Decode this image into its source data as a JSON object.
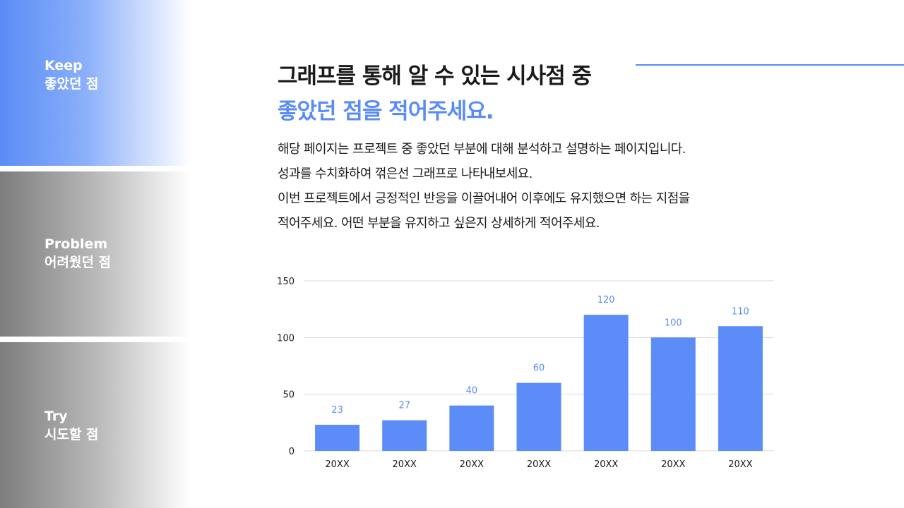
{
  "sidebar": {
    "keep": {
      "en": "Keep",
      "ko": "좋았던 점"
    },
    "problem": {
      "en": "Problem",
      "ko": "어려웠던 점"
    },
    "try": {
      "en": "Try",
      "ko": "시도할 점"
    }
  },
  "heading": {
    "line1": "그래프를 통해 알 수 있는 시사점 중",
    "line2": "좋았던 점을 적어주세요."
  },
  "description": [
    "해당 페이지는 프로젝트 중 좋았던 부분에 대해 분석하고 설명하는 페이지입니다.",
    "성과를 수치화하여 꺾은선 그래프로 나타내보세요.",
    "이번 프로젝트에서 긍정적인 반응을 이끌어내어 이후에도 유지했으면 하는 지점을",
    "적어주세요. 어떤 부분을 유지하고 싶은지 상세하게 적어주세요."
  ],
  "colors": {
    "accent": "#5a8cf7",
    "bar": "#5b8cf8",
    "grid": "#d9d9d9",
    "text": "#1a1a1a"
  },
  "chart_data": {
    "type": "bar",
    "categories": [
      "20XX",
      "20XX",
      "20XX",
      "20XX",
      "20XX",
      "20XX",
      "20XX"
    ],
    "values": [
      23,
      27,
      40,
      60,
      120,
      100,
      110
    ],
    "yticks": [
      0,
      50,
      100,
      150
    ],
    "ylim": [
      0,
      150
    ],
    "grid": true,
    "data_labels": true
  }
}
